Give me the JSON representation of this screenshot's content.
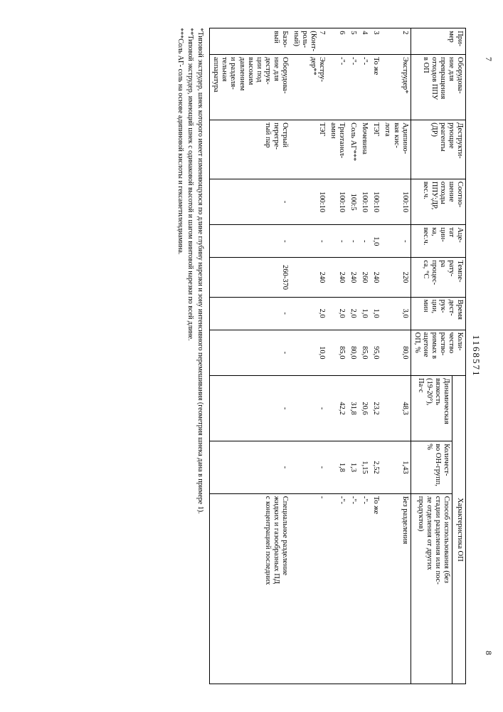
{
  "pageLeft": "7",
  "pageRight": "8",
  "docNumber": "1168571",
  "headers": {
    "h1": "При-\nмер",
    "h2": "Оборудова-\nние для\nпревращения\nотходов ППУ\nв ОП",
    "h3": "Деструкти-\nрующие\nреагенты\n(ДР)",
    "h4": "Соотно-\nшение\nотходы\nППУ:ДР,\nвес.ч.",
    "h5": "Аце-\nтат\nцин-\nка,\nвес.ч.",
    "h6": "Темпе-\nрату-\nра\nпроцес-\nса, °C",
    "h7": "Время\nдест-\nрук-\nции,\nмин",
    "h8": "Коли-\nчество\nраство-\nримых в\nацетоне\nОП, %",
    "hGroup": "Характеристика ОП",
    "h9": "Динамическая\nвязкость\n(19-20°),\nПа·с",
    "h10": "Количест-\nво ОН-групп,\n%",
    "h11": "Способ использования (без\nстадии разделения или пос-\nле отделения от других\nпродуктов)"
  },
  "rows": [
    {
      "n": "2",
      "eq": "Экструдер*",
      "dr": "Адипино-\nвая кис-\nлота",
      "ratio": "100:10",
      "ac": "-",
      "t": "220",
      "time": "3,0",
      "sol": "80,0",
      "visc": "48,3",
      "oh": "1,43",
      "use": "Без разделения"
    },
    {
      "n": "3",
      "eq": "То же",
      "dr": "ТЭГ",
      "ratio": "100:10",
      "ac": "1,0",
      "t": "240",
      "time": "1,0",
      "sol": "95,0",
      "visc": "23,2",
      "oh": "2,52",
      "use": "То же"
    },
    {
      "n": "4",
      "eq": "-\"-",
      "dr": "Мочевина",
      "ratio": "100:10",
      "ac": "-",
      "t": "260",
      "time": "1,0",
      "sol": "85,0",
      "visc": "20,6",
      "oh": "1,15",
      "use": "-\"-"
    },
    {
      "n": "5",
      "eq": "-\"-",
      "dr": "Соль АГ***",
      "ratio": "100:5",
      "ac": "-",
      "t": "240",
      "time": "2,0",
      "sol": "80,0",
      "visc": "31,8",
      "oh": "1,3",
      "use": "-\"-"
    },
    {
      "n": "6",
      "eq": "-\"-",
      "dr": "Триэтанол-\nамин",
      "ratio": "100:10",
      "ac": "-",
      "t": "240",
      "time": "2,0",
      "sol": "85,0",
      "visc": "42,2",
      "oh": "1,8",
      "use": "-\"-"
    },
    {
      "n": "7\n(Конт-\nроль-\nный)",
      "eq": "Экстру-\nдер**",
      "dr": "ТЭГ",
      "ratio": "100:10",
      "ac": "-",
      "t": "240",
      "time": "2,0",
      "sol": "10,0",
      "visc": "-",
      "oh": "-",
      "use": "-"
    },
    {
      "n": "Базо-\nвый",
      "eq": "Оборудова-\nние для\nдеструк-\nции под\nвысоким\nдавлением\nи разделя-\nтельная\nаппаратура",
      "dr": "Острый\nперегре-\nтый пар",
      "ratio": "-",
      "ac": "-",
      "t": "260-370",
      "time": "-",
      "sol": "-",
      "visc": "-",
      "oh": "-",
      "use": "Специальное разделение\nжидких и газообразных ПД\nс концентрацией последних"
    }
  ],
  "footnotes": {
    "f1": "*Типовой экструдер, шнек которого имеет изменяющуюся по длине глубину нарезки и зону интенсивного перемешивания (геометрия шнека дана в примере 1).",
    "f2": "**Типовой экструдер, имеющий шнек с одинаковой высотой и шагом винтовой нарезки по всей длине.",
    "f3": "***Соль АГ- соль на основе адипиновой кислоты и гексаметилендиамина."
  },
  "style": {
    "borderColor": "#000000",
    "background": "#ffffff",
    "fontSize": 10.5
  }
}
